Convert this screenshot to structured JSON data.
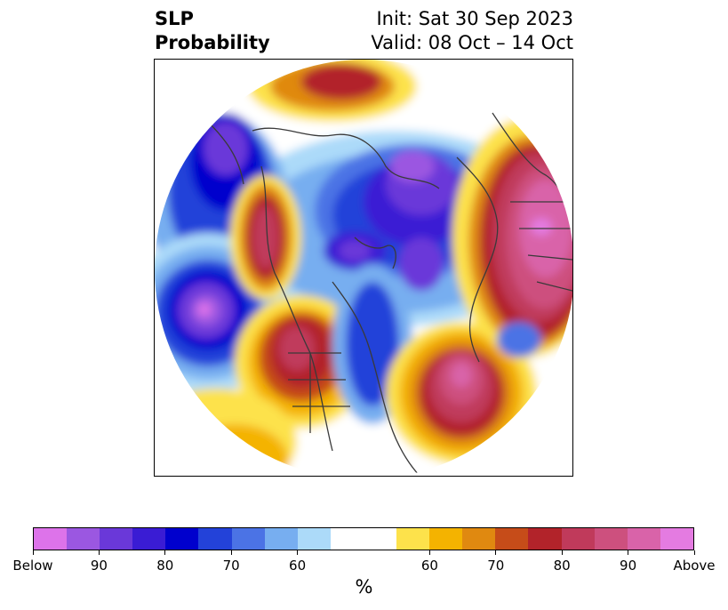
{
  "title": {
    "left_line1": "SLP",
    "left_line2": "Probability",
    "right_line1": "Init: Sat 30 Sep 2023",
    "right_line2": "Valid: 08 Oct – 14 Oct"
  },
  "map": {
    "projection": "north-polar-stereographic",
    "background": "#ffffff",
    "coastline_color": "#3a3a3a",
    "anomalies": [
      {
        "region": "north-pacific",
        "category": "below",
        "peak": "Below"
      },
      {
        "region": "eastern-siberia-arctic",
        "category": "below",
        "peak": "90"
      },
      {
        "region": "alaska-yukon",
        "category": "above",
        "peak": "90"
      },
      {
        "region": "western-north-america",
        "category": "above",
        "peak": "90"
      },
      {
        "region": "eastern-north-america",
        "category": "below",
        "peak": "70"
      },
      {
        "region": "north-atlantic",
        "category": "above",
        "peak": "90"
      },
      {
        "region": "scandinavia-europe",
        "category": "above",
        "peak": "Above"
      },
      {
        "region": "greenland-north",
        "category": "below",
        "peak": "90"
      }
    ]
  },
  "colorbar": {
    "colors": [
      "#dd73ea",
      "#9b57e1",
      "#6a38d9",
      "#3a1cd4",
      "#0000cd",
      "#2342d9",
      "#4b73e5",
      "#77aef0",
      "#acdaf9",
      "#ffffff",
      "#ffffff",
      "#fde24b",
      "#f4b300",
      "#e08910",
      "#c64c19",
      "#b2232a",
      "#c03a5b",
      "#cd507e",
      "#d963a9",
      "#e47be1"
    ],
    "ticks": [
      "Below",
      "90",
      "80",
      "70",
      "60",
      "60",
      "70",
      "80",
      "90",
      "Above"
    ],
    "unit": "%"
  }
}
